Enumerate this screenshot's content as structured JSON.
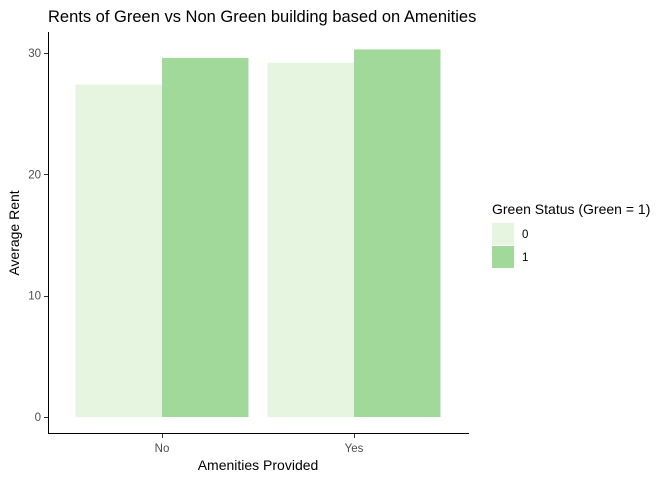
{
  "chart_data": {
    "type": "bar",
    "title": "Rents of Green vs Non Green building based on Amenities",
    "xlabel": "Amenities Provided",
    "ylabel": "Average Rent",
    "categories": [
      "No",
      "Yes"
    ],
    "series": [
      {
        "name": "0",
        "values": [
          27.4,
          29.2
        ],
        "color": "#e5f5e0"
      },
      {
        "name": "1",
        "values": [
          29.6,
          30.3
        ],
        "color": "#a1d99b"
      }
    ],
    "ylim": [
      0,
      31.5
    ],
    "yticks": [
      0,
      10,
      20,
      30
    ],
    "grid": false,
    "legend": {
      "title": "Green Status (Green = 1)",
      "placement": "right"
    }
  }
}
